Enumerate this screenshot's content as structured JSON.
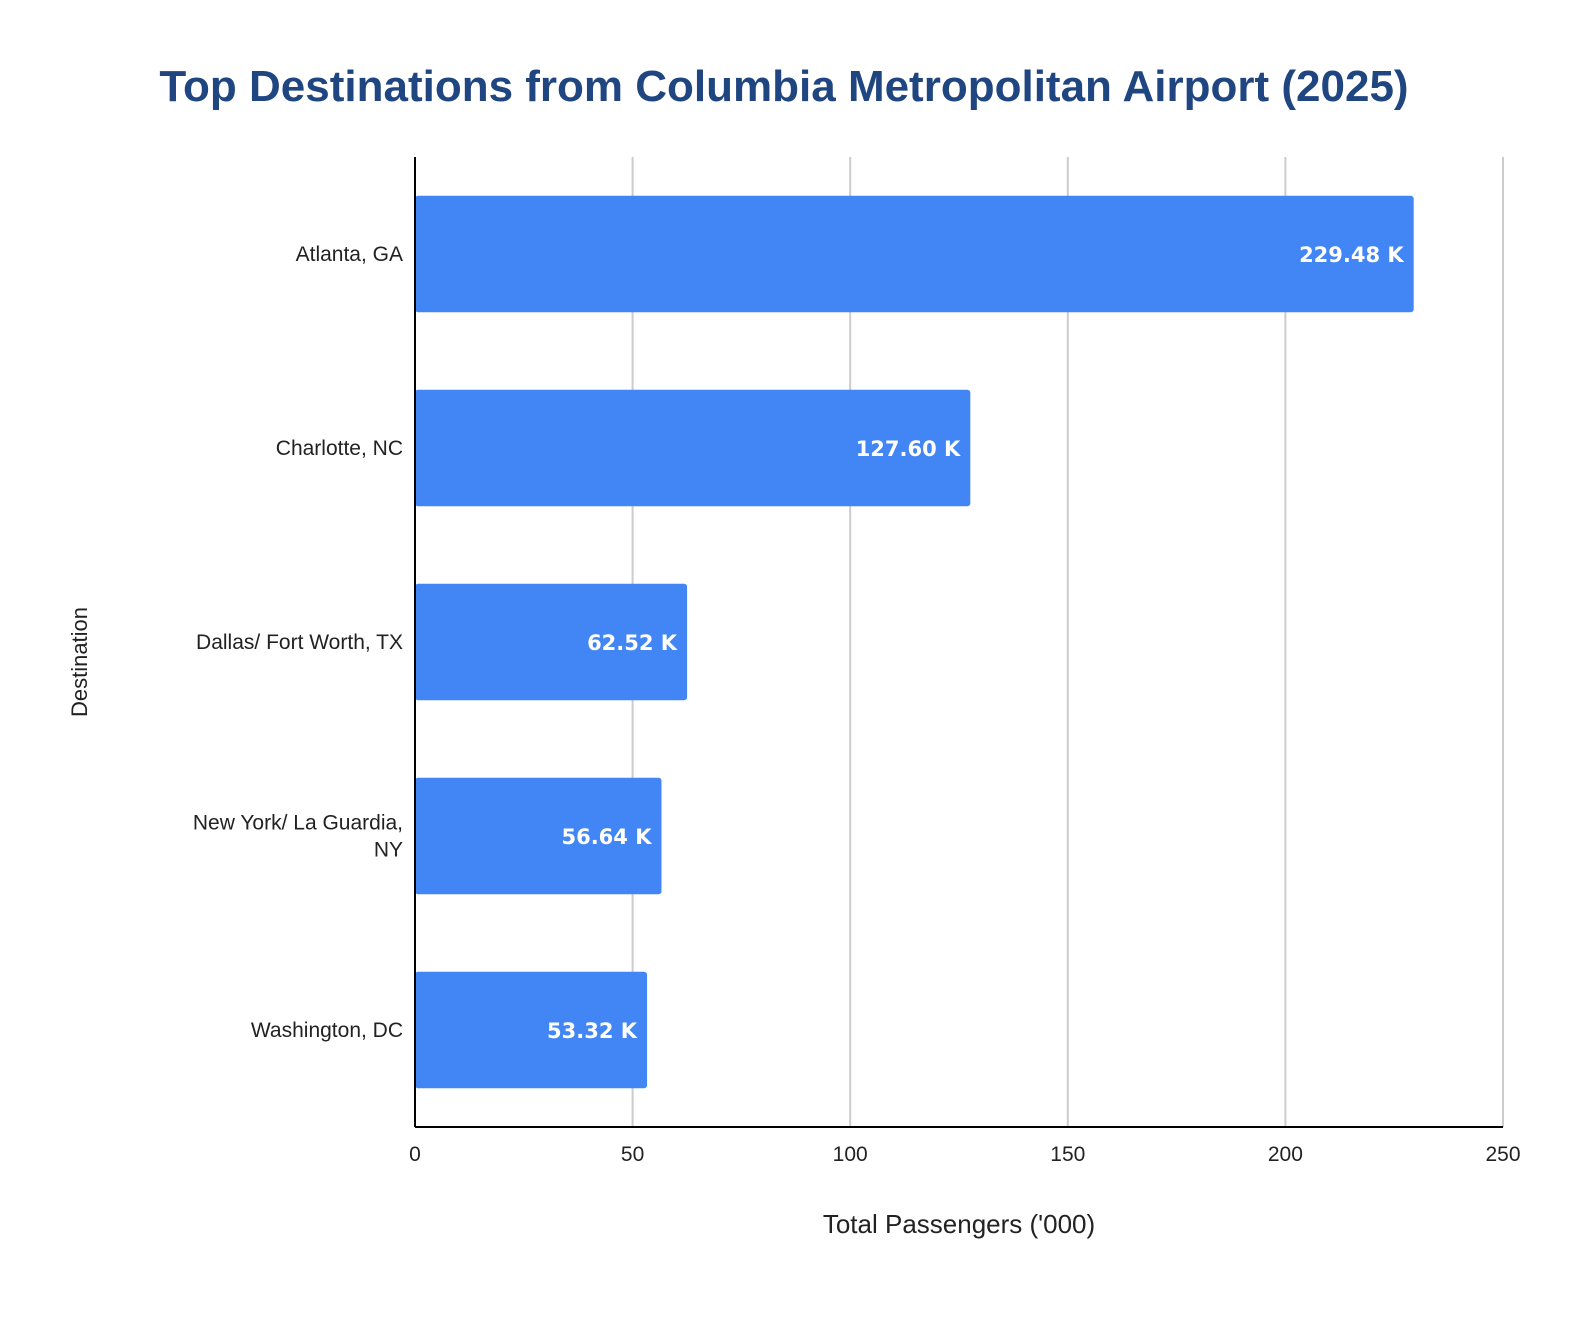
{
  "chart_data": {
    "type": "bar",
    "orientation": "horizontal",
    "title": "Top Destinations from Columbia Metropolitan Airport (2025)",
    "xlabel": "Total Passengers ('000)",
    "ylabel": "Destination",
    "categories": [
      [
        "Atlanta, GA"
      ],
      [
        "Charlotte, NC"
      ],
      [
        "Dallas/ Fort Worth, TX"
      ],
      [
        "New York/ La Guardia,",
        "NY"
      ],
      [
        "Washington, DC"
      ]
    ],
    "values": [
      229.48,
      127.6,
      62.52,
      56.64,
      53.32
    ],
    "data_labels": [
      "229.48 K",
      "127.60 K",
      "62.52 K",
      "56.64 K",
      "53.32 K"
    ],
    "xlim": [
      0,
      250
    ],
    "xticks": [
      0,
      50,
      100,
      150,
      200,
      250
    ],
    "grid": true,
    "legend": "none",
    "colors": {
      "bar": "#4285f4",
      "grid": "#cccccc",
      "axis": "#000000",
      "title": "#1f4681"
    }
  }
}
